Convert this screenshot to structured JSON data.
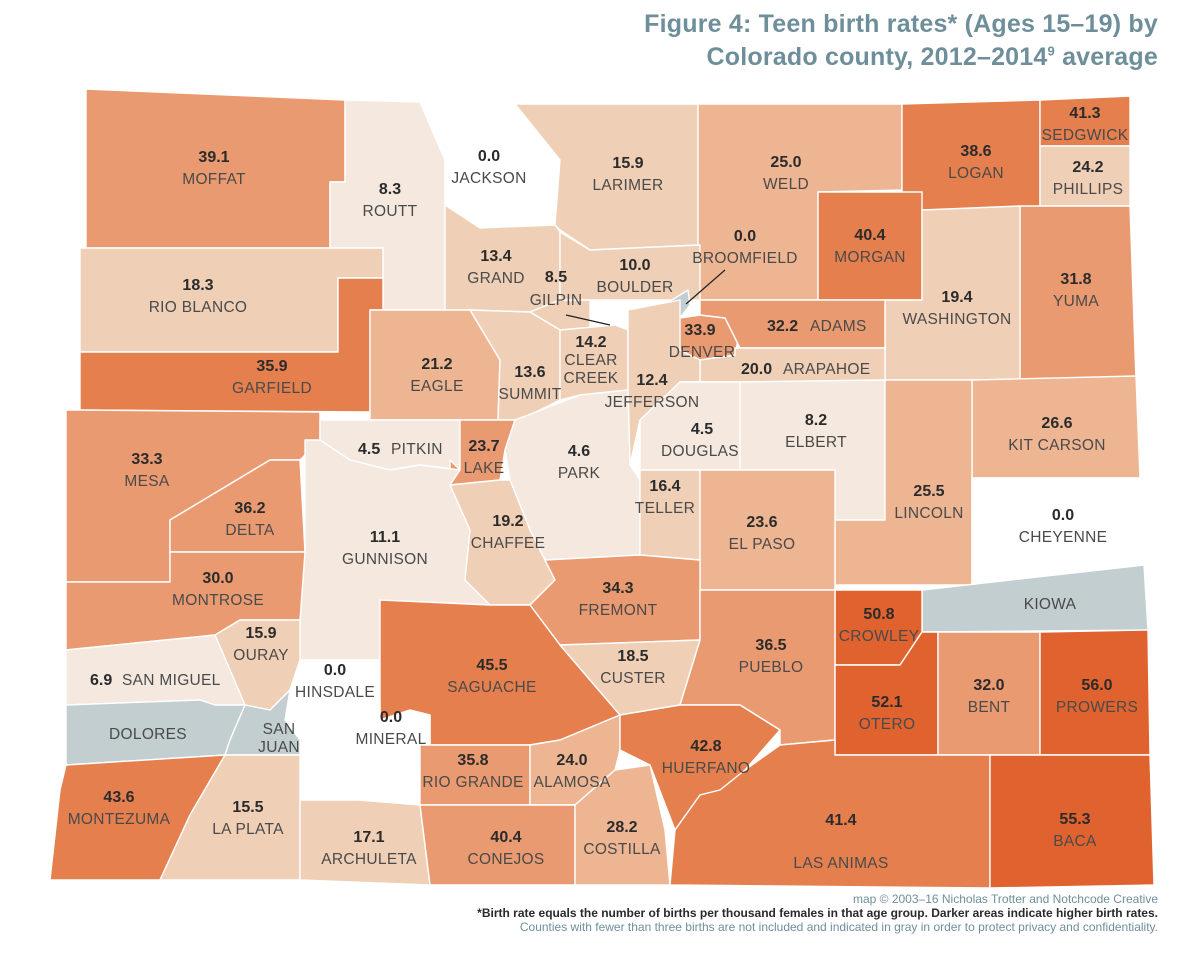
{
  "title": {
    "line1": "Figure 4: Teen birth rates* (Ages 15–19) by",
    "line2_prefix": "Colorado county, 2012–2014",
    "line2_sup": "9",
    "line2_suffix": " average"
  },
  "colors": {
    "no_data": "#c3ced1",
    "zero": "#ffffff",
    "scale": [
      "#f4e8df",
      "#efcfb6",
      "#eeb593",
      "#ea9a71",
      "#e57f4e",
      "#e0622f"
    ]
  },
  "counties": {
    "moffat": {
      "name": "MOFFAT",
      "rate": "39.1"
    },
    "routt": {
      "name": "ROUTT",
      "rate": "8.3"
    },
    "jackson": {
      "name": "JACKSON",
      "rate": "0.0"
    },
    "larimer": {
      "name": "LARIMER",
      "rate": "15.9"
    },
    "weld": {
      "name": "WELD",
      "rate": "25.0"
    },
    "logan": {
      "name": "LOGAN",
      "rate": "38.6"
    },
    "sedgwick": {
      "name": "SEDGWICK",
      "rate": "41.3"
    },
    "phillips": {
      "name": "PHILLIPS",
      "rate": "24.2"
    },
    "rio_blanco": {
      "name": "RIO BLANCO",
      "rate": "18.3"
    },
    "grand": {
      "name": "GRAND",
      "rate": "13.4"
    },
    "gilpin": {
      "name": "GILPIN",
      "rate": "8.5"
    },
    "boulder": {
      "name": "BOULDER",
      "rate": "10.0"
    },
    "broomfield": {
      "name": "BROOMFIELD",
      "rate": "0.0"
    },
    "morgan": {
      "name": "MORGAN",
      "rate": "40.4"
    },
    "yuma": {
      "name": "YUMA",
      "rate": "31.8"
    },
    "washington": {
      "name": "WASHINGTON",
      "rate": "19.4"
    },
    "garfield": {
      "name": "GARFIELD",
      "rate": "35.9"
    },
    "eagle": {
      "name": "EAGLE",
      "rate": "21.2"
    },
    "summit": {
      "name": "SUMMIT",
      "rate": "13.6"
    },
    "clear_creek": {
      "name_line1": "CLEAR",
      "name_line2": "CREEK",
      "rate": "14.2"
    },
    "denver": {
      "name": "DENVER",
      "rate": "33.9"
    },
    "adams": {
      "name": "ADAMS",
      "rate": "32.2"
    },
    "arapahoe": {
      "name": "ARAPAHOE",
      "rate": "20.0"
    },
    "jefferson": {
      "name": "JEFFERSON",
      "rate": "12.4"
    },
    "mesa": {
      "name": "MESA",
      "rate": "33.3"
    },
    "pitkin": {
      "name": "PITKIN",
      "rate": "4.5"
    },
    "lake": {
      "name": "LAKE",
      "rate": "23.7"
    },
    "park": {
      "name": "PARK",
      "rate": "4.6"
    },
    "douglas": {
      "name": "DOUGLAS",
      "rate": "4.5"
    },
    "elbert": {
      "name": "ELBERT",
      "rate": "8.2"
    },
    "kit_carson": {
      "name": "KIT CARSON",
      "rate": "26.6"
    },
    "lincoln": {
      "name": "LINCOLN",
      "rate": "25.5"
    },
    "cheyenne": {
      "name": "CHEYENNE",
      "rate": "0.0"
    },
    "delta": {
      "name": "DELTA",
      "rate": "36.2"
    },
    "gunnison": {
      "name": "GUNNISON",
      "rate": "11.1"
    },
    "chaffee": {
      "name": "CHAFFEE",
      "rate": "19.2"
    },
    "teller": {
      "name": "TELLER",
      "rate": "16.4"
    },
    "el_paso": {
      "name": "EL PASO",
      "rate": "23.6"
    },
    "kiowa": {
      "name": "KIOWA"
    },
    "montrose": {
      "name": "MONTROSE",
      "rate": "30.0"
    },
    "fremont": {
      "name": "FREMONT",
      "rate": "34.3"
    },
    "crowley": {
      "name": "CROWLEY",
      "rate": "50.8"
    },
    "ouray": {
      "name": "OURAY",
      "rate": "15.9"
    },
    "san_miguel": {
      "name": "SAN MIGUEL",
      "rate": "6.9"
    },
    "hinsdale": {
      "name": "HINSDALE",
      "rate": "0.0"
    },
    "saguache": {
      "name": "SAGUACHE",
      "rate": "45.5"
    },
    "custer": {
      "name": "CUSTER",
      "rate": "18.5"
    },
    "pueblo": {
      "name": "PUEBLO",
      "rate": "36.5"
    },
    "otero": {
      "name": "OTERO",
      "rate": "52.1"
    },
    "bent": {
      "name": "BENT",
      "rate": "32.0"
    },
    "prowers": {
      "name": "PROWERS",
      "rate": "56.0"
    },
    "dolores": {
      "name": "DOLORES"
    },
    "san_juan": {
      "name_line1": "SAN",
      "name_line2": "JUAN"
    },
    "mineral": {
      "name": "MINERAL",
      "rate": "0.0"
    },
    "rio_grande": {
      "name": "RIO GRANDE",
      "rate": "35.8"
    },
    "alamosa": {
      "name": "ALAMOSA",
      "rate": "24.0"
    },
    "huerfano": {
      "name": "HUERFANO",
      "rate": "42.8"
    },
    "montezuma": {
      "name": "MONTEZUMA",
      "rate": "43.6"
    },
    "la_plata": {
      "name": "LA PLATA",
      "rate": "15.5"
    },
    "archuleta": {
      "name": "ARCHULETA",
      "rate": "17.1"
    },
    "conejos": {
      "name": "CONEJOS",
      "rate": "40.4"
    },
    "costilla": {
      "name": "COSTILLA",
      "rate": "28.2"
    },
    "las_animas": {
      "name": "LAS ANIMAS",
      "rate": "41.4"
    },
    "baca": {
      "name": "BACA",
      "rate": "55.3"
    }
  },
  "footer": {
    "credit": "map © 2003–16 Nicholas Trotter and Notchcode Creative",
    "note": "*Birth rate equals the number of births per thousand females in that age group. Darker areas indicate higher birth rates.",
    "gray_note": "Counties with fewer than three births are not included and indicated in gray in order to protect privacy and confidentiality."
  }
}
